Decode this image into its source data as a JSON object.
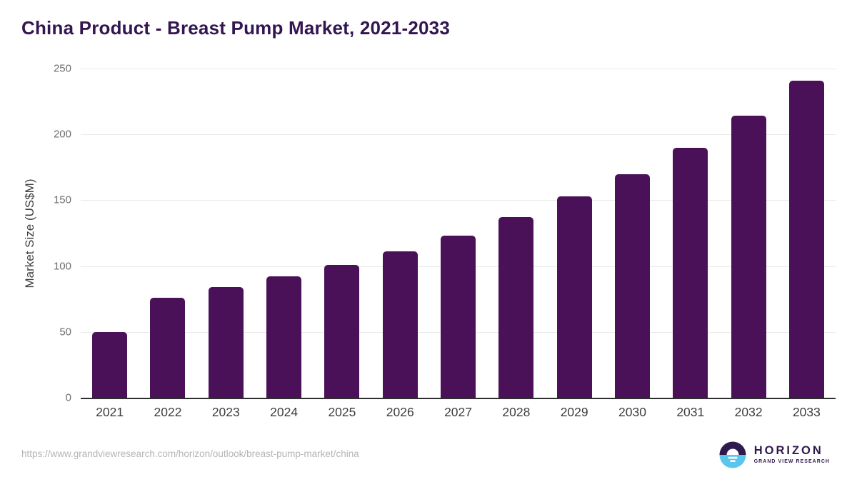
{
  "page": {
    "title": "China Product - Breast Pump Market, 2021-2033",
    "source_url": "https://www.grandviewresearch.com/horizon/outlook/breast-pump-market/china"
  },
  "chart_data": {
    "type": "bar",
    "title": "China Product - Breast Pump Market, 2021-2033",
    "categories": [
      "2021",
      "2022",
      "2023",
      "2024",
      "2025",
      "2026",
      "2027",
      "2028",
      "2029",
      "2030",
      "2031",
      "2032",
      "2033"
    ],
    "values": [
      50,
      76,
      84,
      92,
      101,
      111,
      123,
      137,
      153,
      170,
      190,
      214,
      241
    ],
    "xlabel": "",
    "ylabel": "Market Size (US$M)",
    "ylim": [
      0,
      250
    ],
    "yticks": [
      0,
      50,
      100,
      150,
      200,
      250
    ],
    "grid": true,
    "legend": false,
    "bar_color": "#4a1158",
    "gridline_color": "#e9e9e9",
    "axis_line_color": "#2e2e2e"
  },
  "logo": {
    "name": "HORIZON",
    "subtitle": "GRAND VIEW RESEARCH",
    "icon": "sun-over-water-icon",
    "purple": "#2f1a4d",
    "blue": "#5bc6ec"
  },
  "colors": {
    "title": "#331550",
    "x_labels": "#3d3d3d",
    "y_labels": "#6e6e6e",
    "url_text": "#b4b4b4",
    "background": "#ffffff"
  }
}
